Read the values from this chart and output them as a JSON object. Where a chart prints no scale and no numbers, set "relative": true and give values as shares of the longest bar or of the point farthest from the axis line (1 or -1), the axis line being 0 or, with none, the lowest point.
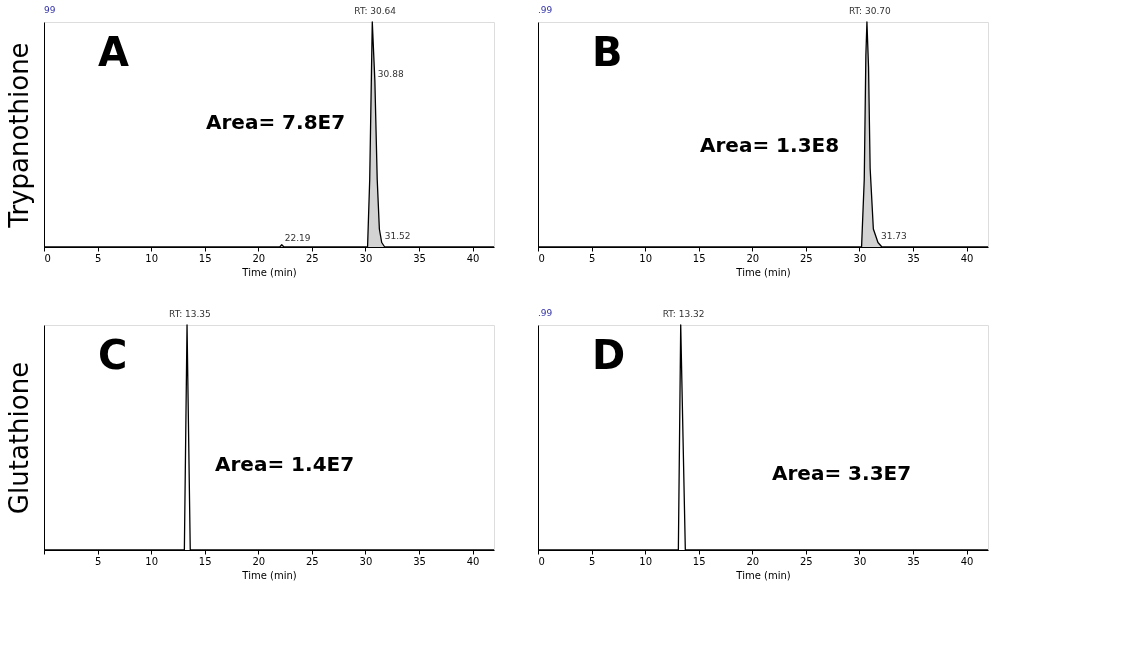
{
  "chart_data": [
    {
      "type": "area",
      "title": "A",
      "ylabel": "Trypanothione",
      "xlabel": "Time (min)",
      "relative": true,
      "xlim": [
        0,
        42
      ],
      "xticks": [
        0,
        5,
        10,
        15,
        20,
        25,
        30,
        35,
        40
      ],
      "grid": false,
      "series": [
        {
          "color": "#c0c0c0",
          "x": [
            0,
            22.0,
            22.19,
            22.4,
            30.2,
            30.4,
            30.64,
            30.88,
            31.1,
            31.3,
            31.52,
            31.8,
            42
          ],
          "values": [
            0,
            0,
            0.01,
            0,
            0,
            0.3,
            1,
            0.74,
            0.3,
            0.08,
            0.02,
            0,
            0
          ]
        }
      ],
      "annotations": [
        "99",
        "Area= 7.8E7",
        {
          "text": "RT: 30.64",
          "x": 30.64,
          "y": 1
        },
        {
          "text": "30.88",
          "x": 30.88,
          "y": 0.74
        },
        {
          "text": "22.19",
          "x": 22.19,
          "y": 0.01
        },
        {
          "text": "31.52",
          "x": 31.52,
          "y": 0.02
        }
      ]
    },
    {
      "type": "area",
      "title": "B",
      "xlabel": "Time (min)",
      "relative": true,
      "xlim": [
        0,
        42
      ],
      "xticks": [
        0,
        5,
        10,
        15,
        20,
        25,
        30,
        35,
        40
      ],
      "grid": false,
      "series": [
        {
          "color": "#c0c0c0",
          "x": [
            0,
            30.2,
            30.45,
            30.6,
            30.7,
            30.85,
            31.0,
            31.3,
            31.73,
            32.1,
            42
          ],
          "values": [
            0,
            0,
            0.3,
            0.85,
            1,
            0.8,
            0.35,
            0.08,
            0.02,
            0,
            0
          ]
        }
      ],
      "annotations": [
        ".99",
        "Area= 1.3E8",
        {
          "text": "RT: 30.70",
          "x": 30.7,
          "y": 1
        },
        {
          "text": "31.73",
          "x": 31.73,
          "y": 0.02
        }
      ]
    },
    {
      "type": "line",
      "title": "C",
      "ylabel": "Glutathione",
      "xlabel": "Time (min)",
      "relative": true,
      "xlim": [
        0,
        42
      ],
      "xticks": [
        {
          "value": 0,
          "label": null
        },
        5,
        10,
        15,
        20,
        25,
        30,
        35,
        40
      ],
      "grid": false,
      "series": [
        {
          "color": "#000000",
          "x": [
            0,
            13.1,
            13.35,
            13.65,
            42
          ],
          "values": [
            0,
            0,
            1,
            0,
            0
          ]
        }
      ],
      "annotations": [
        "Area= 1.4E7",
        {
          "text": "RT: 13.35",
          "x": 13.35,
          "y": 1
        }
      ]
    },
    {
      "type": "line",
      "title": "D",
      "xlabel": "Time (min)",
      "relative": true,
      "xlim": [
        0,
        42
      ],
      "xticks": [
        0,
        5,
        10,
        15,
        20,
        25,
        30,
        35,
        40
      ],
      "grid": false,
      "series": [
        {
          "color": "#000000",
          "x": [
            0,
            13.1,
            13.32,
            13.75,
            42
          ],
          "values": [
            0,
            0,
            1,
            0,
            0
          ]
        }
      ],
      "annotations": [
        ".99",
        "Area= 3.3E7",
        {
          "text": "RT: 13.32",
          "x": 13.32,
          "y": 1
        }
      ]
    }
  ]
}
